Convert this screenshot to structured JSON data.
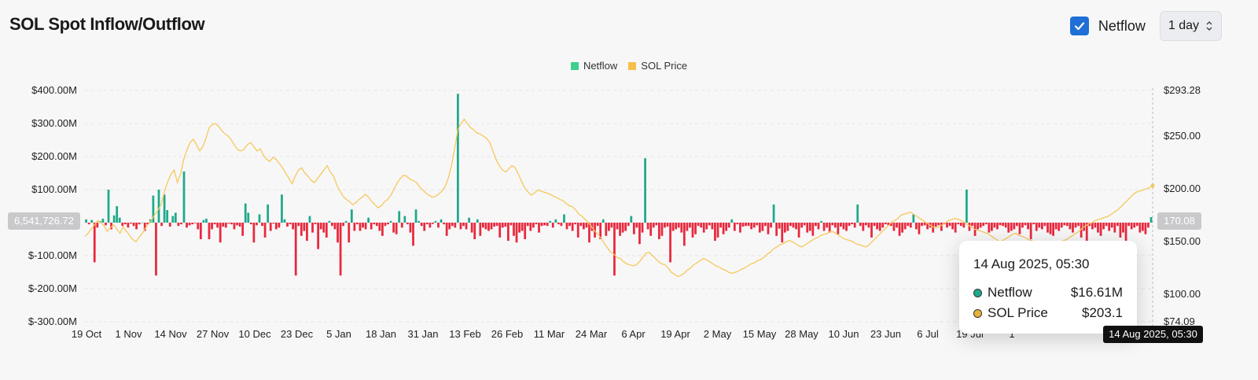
{
  "header": {
    "title": "SOL Spot Inflow/Outflow",
    "netflow_toggle_label": "Netflow",
    "netflow_checked": true,
    "interval_value": "1 day"
  },
  "legend": [
    {
      "label": "Netflow",
      "color": "#3ecf8e"
    },
    {
      "label": "SOL Price",
      "color": "#f5c04a"
    }
  ],
  "colors": {
    "inflow_bar": "#1fa98a",
    "outflow_bar": "#e8283c",
    "price_line": "#f7c85a",
    "checkbox": "#1f6fd6"
  },
  "crosshair": {
    "left_value": "6,541,726.72",
    "right_value": "170.08",
    "x_value": "14 Aug 2025, 05:30"
  },
  "tooltip": {
    "date": "14 Aug 2025, 05:30",
    "rows": [
      {
        "label": "Netflow",
        "value": "$16.61M",
        "color": "#1fa98a"
      },
      {
        "label": "SOL Price",
        "value": "$203.1",
        "color": "#e8b33a"
      }
    ]
  },
  "chart_data": {
    "type": "bar",
    "title": "SOL Spot Inflow/Outflow",
    "x_tick_labels": [
      "19 Oct",
      "1 Nov",
      "14 Nov",
      "27 Nov",
      "10 Dec",
      "23 Dec",
      "5 Jan",
      "18 Jan",
      "31 Jan",
      "13 Feb",
      "26 Feb",
      "11 Mar",
      "24 Mar",
      "6 Apr",
      "19 Apr",
      "2 May",
      "15 May",
      "28 May",
      "10 Jun",
      "23 Jun",
      "6 Jul",
      "19 Jul",
      "1"
    ],
    "y_left_ticks": [
      "$400.00M",
      "$300.00M",
      "$200.00M",
      "$100.00M",
      "$-100.00M",
      "$-200.00M",
      "$-300.00M"
    ],
    "y_left_tick_values": [
      400,
      300,
      200,
      100,
      -100,
      -200,
      -300
    ],
    "y_left_range": [
      -300,
      400
    ],
    "y_right_ticks": [
      "$293.28",
      "$250.00",
      "$200.00",
      "$150.00",
      "$100.00",
      "$74.09"
    ],
    "y_right_tick_values": [
      293.28,
      250,
      200,
      150,
      100,
      74.09
    ],
    "y_right_range": [
      74.09,
      293.28
    ],
    "grid": true,
    "series": [
      {
        "name": "Netflow",
        "unit": "$M",
        "values": [
          10,
          -5,
          8,
          -120,
          -15,
          5,
          12,
          -8,
          100,
          -20,
          22,
          50,
          15,
          -10,
          -5,
          -15,
          -3,
          -10,
          -20,
          -5,
          0,
          -25,
          -5,
          10,
          82,
          -160,
          100,
          -10,
          85,
          38,
          -12,
          20,
          30,
          -10,
          -5,
          155,
          -15,
          -8,
          -5,
          -2,
          -20,
          -50,
          8,
          12,
          -50,
          -20,
          -5,
          -15,
          -60,
          -12,
          -15,
          -3,
          -5,
          -20,
          -8,
          -12,
          -40,
          58,
          30,
          -5,
          -60,
          -8,
          25,
          -10,
          -45,
          55,
          -25,
          -3,
          -20,
          -15,
          85,
          10,
          -12,
          -5,
          -20,
          -160,
          -10,
          -40,
          -25,
          -55,
          20,
          -30,
          -5,
          -80,
          -20,
          -30,
          -45,
          5,
          -10,
          -20,
          -60,
          -160,
          -10,
          5,
          -60,
          40,
          -25,
          -5,
          -25,
          -15,
          -20,
          15,
          -20,
          -5,
          -10,
          -25,
          -40,
          -10,
          -5,
          5,
          -30,
          -35,
          35,
          -15,
          20,
          -5,
          -30,
          -70,
          40,
          5,
          -10,
          -25,
          -5,
          -15,
          -4,
          5,
          -15,
          10,
          -5,
          -40,
          -20,
          -10,
          -15,
          390,
          -20,
          -10,
          -20,
          15,
          -30,
          -50,
          10,
          -40,
          -15,
          -20,
          -25,
          -20,
          -12,
          -10,
          -45,
          -15,
          -12,
          -55,
          -8,
          -40,
          -60,
          -30,
          -25,
          -50,
          -10,
          -25,
          -15,
          -5,
          -30,
          -10,
          -8,
          -10,
          5,
          -15,
          10,
          -5,
          -10,
          25,
          -20,
          -10,
          -25,
          -5,
          -45,
          -10,
          -20,
          -15,
          -60,
          -25,
          -45,
          -10,
          -50,
          10,
          -40,
          -25,
          -15,
          -160,
          -20,
          -40,
          -30,
          -25,
          -10,
          20,
          -35,
          -15,
          -65,
          -30,
          195,
          -20,
          -40,
          -15,
          -8,
          -50,
          -40,
          -15,
          -12,
          -120,
          -25,
          -20,
          -15,
          -30,
          -70,
          -25,
          -15,
          -45,
          -35,
          -10,
          -15,
          -30,
          -20,
          -8,
          -20,
          -55,
          -45,
          -15,
          -35,
          -25,
          -15,
          10,
          -25,
          -5,
          -30,
          -12,
          -10,
          -10,
          -20,
          -15,
          -8,
          -30,
          -25,
          -10,
          -35,
          -15,
          55,
          -40,
          -18,
          -60,
          -30,
          -25,
          -10,
          -15,
          -20,
          -45,
          -15,
          -8,
          -30,
          -25,
          -40,
          -10,
          -20,
          5,
          -25,
          -15,
          -30,
          -8,
          -15,
          -35,
          -12,
          -20,
          -25,
          -10,
          -5,
          -15,
          55,
          -10,
          -25,
          -8,
          -15,
          -45,
          -10,
          -20,
          -25,
          -15,
          -5,
          -8,
          -10,
          -25,
          -15,
          -40,
          -30,
          -20,
          -10,
          -15,
          25,
          -20,
          -35,
          -10,
          -8,
          -20,
          -15,
          -30,
          -12,
          -8,
          -25,
          -5,
          -15,
          -10,
          -20,
          -30,
          -5,
          -10,
          -15,
          100,
          -25,
          -10,
          -40,
          -20,
          -15,
          -10,
          -5,
          -30,
          -25,
          -15,
          -20,
          -8,
          -10,
          -15,
          -30,
          -25,
          -20,
          -10,
          -35,
          -15,
          -8,
          -20,
          -50,
          -5,
          -25,
          -15,
          -20,
          -10,
          -30,
          -35,
          -40,
          -20,
          -25,
          -15,
          -8,
          -10,
          -20,
          -30,
          -15,
          -10,
          -45,
          -25,
          -55,
          -10,
          -20,
          -15,
          -30,
          -40,
          -20,
          -10,
          -25,
          -15,
          -30,
          -10,
          -45,
          -30,
          -60,
          -10,
          -20,
          -15,
          -10,
          -30,
          -25,
          -35,
          -15,
          16.61
        ]
      },
      {
        "name": "SOL Price",
        "unit": "$",
        "values": [
          155,
          158,
          162,
          166,
          170,
          168,
          165,
          160,
          163,
          166,
          162,
          158,
          164,
          160,
          156,
          152,
          150,
          154,
          158,
          163,
          167,
          171,
          176,
          180,
          186,
          198,
          207,
          214,
          218,
          206,
          214,
          228,
          237,
          244,
          247,
          242,
          236,
          240,
          248,
          258,
          261,
          262,
          259,
          255,
          252,
          250,
          246,
          241,
          237,
          236,
          238,
          242,
          244,
          240,
          236,
          238,
          232,
          228,
          226,
          230,
          228,
          224,
          220,
          215,
          210,
          205,
          212,
          218,
          220,
          215,
          212,
          208,
          206,
          210,
          214,
          218,
          222,
          216,
          212,
          204,
          198,
          193,
          190,
          188,
          185,
          187,
          190,
          192,
          195,
          192,
          188,
          185,
          182,
          184,
          188,
          190,
          194,
          200,
          206,
          210,
          213,
          212,
          209,
          208,
          206,
          202,
          199,
          196,
          194,
          192,
          193,
          195,
          198,
          202,
          210,
          222,
          238,
          256,
          262,
          266,
          262,
          258,
          256,
          253,
          252,
          250,
          248,
          244,
          236,
          228,
          222,
          218,
          216,
          219,
          222,
          220,
          214,
          207,
          201,
          197,
          194,
          196,
          199,
          198,
          197,
          196,
          195,
          193,
          192,
          190,
          189,
          186,
          184,
          183,
          180,
          176,
          174,
          171,
          168,
          164,
          160,
          157,
          153,
          148,
          144,
          140,
          138,
          135,
          134,
          131,
          129,
          128,
          127,
          128,
          131,
          135,
          139,
          140,
          137,
          134,
          131,
          129,
          128,
          125,
          121,
          119,
          117,
          118,
          120,
          123,
          125,
          128,
          130,
          132,
          134,
          133,
          131,
          129,
          127,
          126,
          124,
          123,
          121,
          120,
          121,
          122,
          124,
          125,
          127,
          129,
          130,
          132,
          133,
          135,
          138,
          140,
          143,
          145,
          147,
          148,
          150,
          151,
          150,
          148,
          146,
          145,
          147,
          149,
          151,
          153,
          154,
          156,
          157,
          158,
          160,
          159,
          157,
          155,
          153,
          152,
          151,
          150,
          148,
          147,
          146,
          145,
          147,
          150,
          153,
          156,
          159,
          162,
          165,
          168,
          170,
          172,
          175,
          176,
          177,
          178,
          176,
          174,
          172,
          170,
          168,
          166,
          164,
          163,
          164,
          166,
          168,
          170,
          171,
          172,
          171,
          170,
          168,
          166,
          164,
          162,
          161,
          160,
          159,
          158,
          156,
          154,
          152,
          150,
          151,
          153,
          155,
          157,
          158,
          156,
          155,
          154,
          152,
          151,
          150,
          149,
          148,
          147,
          146,
          147,
          148,
          149,
          150,
          151,
          152,
          154,
          156,
          158,
          160,
          163,
          165,
          167,
          168,
          170,
          171,
          172,
          173,
          174,
          176,
          178,
          180,
          183,
          186,
          189,
          192,
          195,
          197,
          198,
          199,
          200,
          201,
          203.1
        ]
      }
    ]
  }
}
